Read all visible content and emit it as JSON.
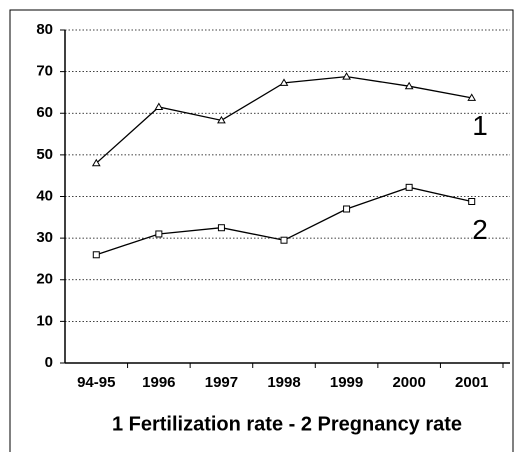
{
  "chart_data": {
    "type": "line",
    "xlabel": "1 Fertilization rate - 2 Pregnancy rate",
    "categories": [
      "94-95",
      "1996",
      "1997",
      "1998",
      "1999",
      "2000",
      "2001"
    ],
    "series": [
      {
        "name": "1",
        "color": "#000000",
        "marker": "triangle",
        "values": [
          48,
          61.5,
          58.3,
          67.3,
          68.8,
          66.5,
          63.7
        ]
      },
      {
        "name": "2",
        "color": "#000000",
        "marker": "square",
        "values": [
          26,
          31,
          32.5,
          29.5,
          37,
          42.2,
          38.8
        ]
      }
    ],
    "ylim": [
      0,
      80
    ],
    "yticks": [
      0,
      10,
      20,
      30,
      40,
      50,
      60,
      70,
      80
    ],
    "grid": true
  }
}
